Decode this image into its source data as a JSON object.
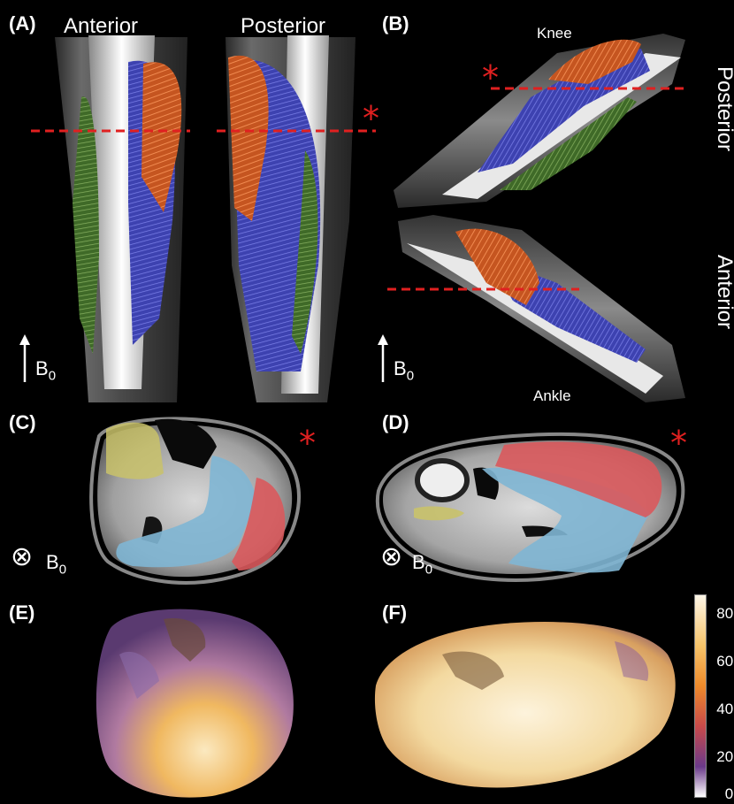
{
  "panels": {
    "a": {
      "label": "(A)",
      "anterior": "Anterior",
      "posterior": "Posterior",
      "b0": "B",
      "b0_sub": "0"
    },
    "b": {
      "label": "(B)",
      "knee": "Knee",
      "ankle": "Ankle",
      "posterior": "Posterior",
      "anterior": "Anterior",
      "b0": "B",
      "b0_sub": "0"
    },
    "c": {
      "label": "(C)",
      "b0": "B",
      "b0_sub": "0"
    },
    "d": {
      "label": "(D)",
      "b0": "B",
      "b0_sub": "0"
    },
    "e": {
      "label": "(E)"
    },
    "f": {
      "label": "(F)"
    }
  },
  "star": "*",
  "otimes": "⊗",
  "colorbar": {
    "ticks": [
      "80°",
      "60°",
      "40°",
      "20°",
      "0°"
    ],
    "colors": [
      "#fdf6e8",
      "#f6c46a",
      "#ee8a2a",
      "#c84a4a",
      "#6a3a8a",
      "#1a1030"
    ]
  },
  "colors": {
    "fiber_orange": "#d9642a",
    "fiber_blue": "#4a4fc8",
    "fiber_green": "#5a8a3a",
    "seg_yellow": "#c9c26a",
    "seg_blue": "#7fb6d4",
    "seg_red": "#d9595c",
    "dashed_line": "#e02020"
  }
}
